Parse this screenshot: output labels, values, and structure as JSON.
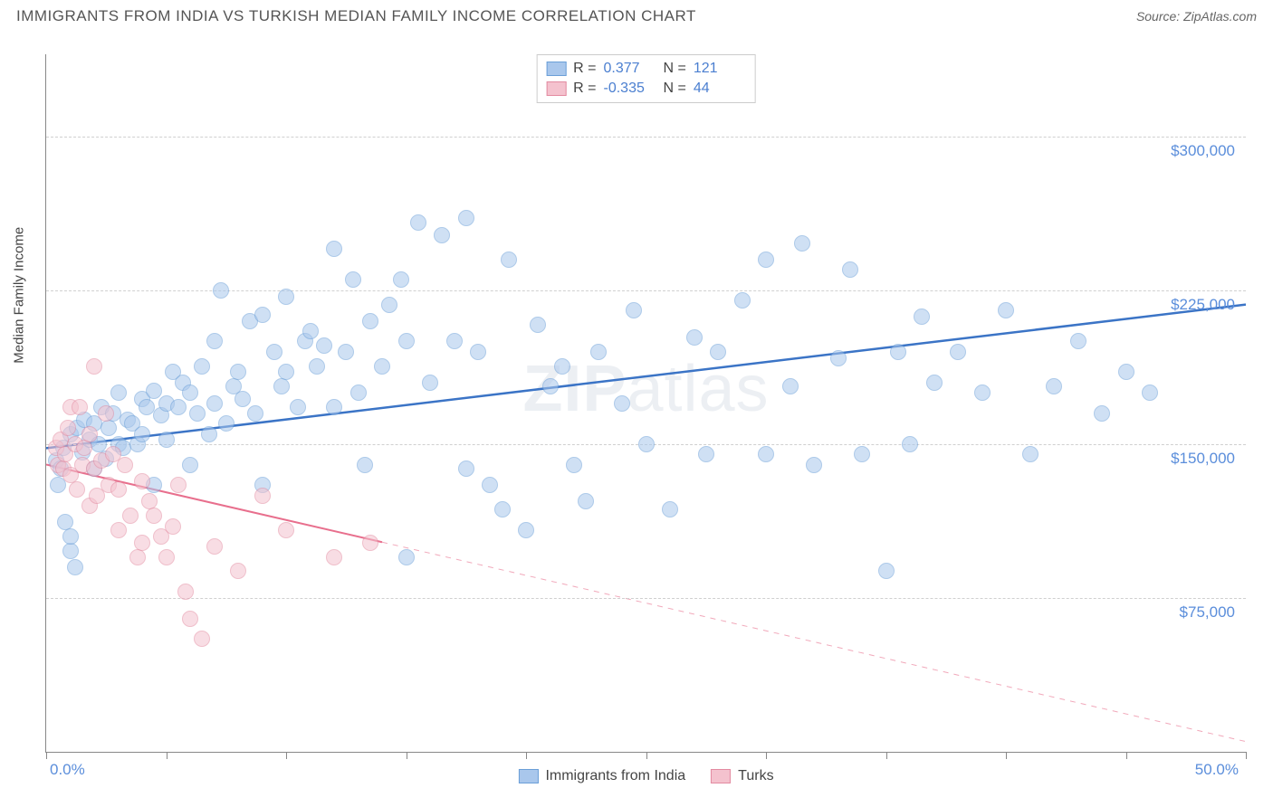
{
  "title": "IMMIGRANTS FROM INDIA VS TURKISH MEDIAN FAMILY INCOME CORRELATION CHART",
  "source": "Source: ZipAtlas.com",
  "watermark_left": "ZIP",
  "watermark_right": "atlas",
  "yaxis_title": "Median Family Income",
  "chart": {
    "type": "scatter",
    "xlim": [
      0,
      50
    ],
    "ylim": [
      0,
      340000
    ],
    "x_ticks": [
      0,
      5,
      10,
      15,
      20,
      25,
      30,
      35,
      40,
      45,
      50
    ],
    "x_labels": {
      "0": "0.0%",
      "50": "50.0%"
    },
    "y_gridlines": [
      75000,
      150000,
      225000,
      300000
    ],
    "y_labels": {
      "75000": "$75,000",
      "150000": "$150,000",
      "225000": "$225,000",
      "300000": "$300,000"
    },
    "background_color": "#ffffff",
    "grid_color": "#d0d0d0",
    "tick_color": "#888888",
    "label_color": "#5b8edb",
    "axis_title_color": "#444444",
    "marker_radius": 9,
    "marker_border_width": 1.2,
    "marker_opacity": 0.55,
    "series": [
      {
        "name": "Immigrants from India",
        "fill": "#a9c7ec",
        "stroke": "#6b9fd8",
        "trend_color": "#3b74c6",
        "trend_width": 2.5,
        "trend": {
          "x1": 0,
          "y1": 148000,
          "x2": 50,
          "y2": 218000,
          "solid_to_x": 50
        },
        "r_label": "R =",
        "r_value": "0.377",
        "n_label": "N =",
        "n_value": "121",
        "points": [
          [
            0.4,
            142000
          ],
          [
            0.5,
            130000
          ],
          [
            0.6,
            138000
          ],
          [
            0.7,
            148000
          ],
          [
            0.8,
            112000
          ],
          [
            1.0,
            98000
          ],
          [
            1.0,
            155000
          ],
          [
            1.0,
            105000
          ],
          [
            1.2,
            90000
          ],
          [
            1.3,
            158000
          ],
          [
            1.5,
            146000
          ],
          [
            1.6,
            162000
          ],
          [
            1.8,
            152000
          ],
          [
            2.0,
            138000
          ],
          [
            2.0,
            160000
          ],
          [
            2.2,
            150000
          ],
          [
            2.3,
            168000
          ],
          [
            2.5,
            143000
          ],
          [
            2.6,
            158000
          ],
          [
            2.8,
            165000
          ],
          [
            3.0,
            150000
          ],
          [
            3.0,
            175000
          ],
          [
            3.2,
            148000
          ],
          [
            3.4,
            162000
          ],
          [
            3.6,
            160000
          ],
          [
            3.8,
            150000
          ],
          [
            4.0,
            172000
          ],
          [
            4.0,
            155000
          ],
          [
            4.2,
            168000
          ],
          [
            4.5,
            176000
          ],
          [
            4.5,
            130000
          ],
          [
            4.8,
            164000
          ],
          [
            5.0,
            170000
          ],
          [
            5.0,
            152000
          ],
          [
            5.3,
            185000
          ],
          [
            5.5,
            168000
          ],
          [
            5.7,
            180000
          ],
          [
            6.0,
            140000
          ],
          [
            6.0,
            175000
          ],
          [
            6.3,
            165000
          ],
          [
            6.5,
            188000
          ],
          [
            6.8,
            155000
          ],
          [
            7.0,
            170000
          ],
          [
            7.0,
            200000
          ],
          [
            7.3,
            225000
          ],
          [
            7.5,
            160000
          ],
          [
            7.8,
            178000
          ],
          [
            8.0,
            185000
          ],
          [
            8.2,
            172000
          ],
          [
            8.5,
            210000
          ],
          [
            8.7,
            165000
          ],
          [
            9.0,
            213000
          ],
          [
            9.0,
            130000
          ],
          [
            9.5,
            195000
          ],
          [
            9.8,
            178000
          ],
          [
            10.0,
            185000
          ],
          [
            10.0,
            222000
          ],
          [
            10.5,
            168000
          ],
          [
            10.8,
            200000
          ],
          [
            11.0,
            205000
          ],
          [
            11.3,
            188000
          ],
          [
            11.6,
            198000
          ],
          [
            12.0,
            245000
          ],
          [
            12.0,
            168000
          ],
          [
            12.5,
            195000
          ],
          [
            12.8,
            230000
          ],
          [
            13.0,
            175000
          ],
          [
            13.3,
            140000
          ],
          [
            13.5,
            210000
          ],
          [
            14.0,
            188000
          ],
          [
            14.3,
            218000
          ],
          [
            14.8,
            230000
          ],
          [
            15.0,
            95000
          ],
          [
            15.0,
            200000
          ],
          [
            15.5,
            258000
          ],
          [
            16.0,
            180000
          ],
          [
            16.5,
            252000
          ],
          [
            17.0,
            200000
          ],
          [
            17.5,
            138000
          ],
          [
            17.5,
            260000
          ],
          [
            18.0,
            195000
          ],
          [
            18.5,
            130000
          ],
          [
            19.0,
            118000
          ],
          [
            19.3,
            240000
          ],
          [
            20.0,
            108000
          ],
          [
            20.5,
            208000
          ],
          [
            21.0,
            178000
          ],
          [
            21.5,
            188000
          ],
          [
            22.0,
            140000
          ],
          [
            22.5,
            122000
          ],
          [
            23.0,
            195000
          ],
          [
            24.0,
            170000
          ],
          [
            24.5,
            215000
          ],
          [
            25.0,
            150000
          ],
          [
            26.0,
            118000
          ],
          [
            27.0,
            202000
          ],
          [
            27.5,
            145000
          ],
          [
            28.0,
            195000
          ],
          [
            29.0,
            220000
          ],
          [
            30.0,
            240000
          ],
          [
            30.0,
            145000
          ],
          [
            31.0,
            178000
          ],
          [
            31.5,
            248000
          ],
          [
            32.0,
            140000
          ],
          [
            33.0,
            192000
          ],
          [
            33.5,
            235000
          ],
          [
            34.0,
            145000
          ],
          [
            35.0,
            88000
          ],
          [
            35.5,
            195000
          ],
          [
            36.0,
            150000
          ],
          [
            36.5,
            212000
          ],
          [
            37.0,
            180000
          ],
          [
            38.0,
            195000
          ],
          [
            39.0,
            175000
          ],
          [
            40.0,
            215000
          ],
          [
            41.0,
            145000
          ],
          [
            42.0,
            178000
          ],
          [
            43.0,
            200000
          ],
          [
            44.0,
            165000
          ],
          [
            45.0,
            185000
          ],
          [
            46.0,
            175000
          ]
        ]
      },
      {
        "name": "Turks",
        "fill": "#f4c2ce",
        "stroke": "#e38ba1",
        "trend_color": "#e86f8d",
        "trend_width": 2,
        "trend": {
          "x1": 0,
          "y1": 140000,
          "x2": 50,
          "y2": 5000,
          "solid_to_x": 14
        },
        "r_label": "R =",
        "r_value": "-0.335",
        "n_label": "N =",
        "n_value": "44",
        "points": [
          [
            0.4,
            148000
          ],
          [
            0.5,
            140000
          ],
          [
            0.6,
            152000
          ],
          [
            0.7,
            138000
          ],
          [
            0.8,
            145000
          ],
          [
            0.9,
            158000
          ],
          [
            1.0,
            135000
          ],
          [
            1.0,
            168000
          ],
          [
            1.2,
            150000
          ],
          [
            1.3,
            128000
          ],
          [
            1.4,
            168000
          ],
          [
            1.5,
            140000
          ],
          [
            1.6,
            148000
          ],
          [
            1.8,
            155000
          ],
          [
            1.8,
            120000
          ],
          [
            2.0,
            188000
          ],
          [
            2.0,
            138000
          ],
          [
            2.1,
            125000
          ],
          [
            2.3,
            142000
          ],
          [
            2.5,
            165000
          ],
          [
            2.6,
            130000
          ],
          [
            2.8,
            145000
          ],
          [
            3.0,
            128000
          ],
          [
            3.0,
            108000
          ],
          [
            3.3,
            140000
          ],
          [
            3.5,
            115000
          ],
          [
            3.8,
            95000
          ],
          [
            4.0,
            132000
          ],
          [
            4.0,
            102000
          ],
          [
            4.3,
            122000
          ],
          [
            4.5,
            115000
          ],
          [
            4.8,
            105000
          ],
          [
            5.0,
            95000
          ],
          [
            5.3,
            110000
          ],
          [
            5.5,
            130000
          ],
          [
            5.8,
            78000
          ],
          [
            6.0,
            65000
          ],
          [
            6.5,
            55000
          ],
          [
            7.0,
            100000
          ],
          [
            8.0,
            88000
          ],
          [
            9.0,
            125000
          ],
          [
            10.0,
            108000
          ],
          [
            12.0,
            95000
          ],
          [
            13.5,
            102000
          ]
        ]
      }
    ]
  }
}
